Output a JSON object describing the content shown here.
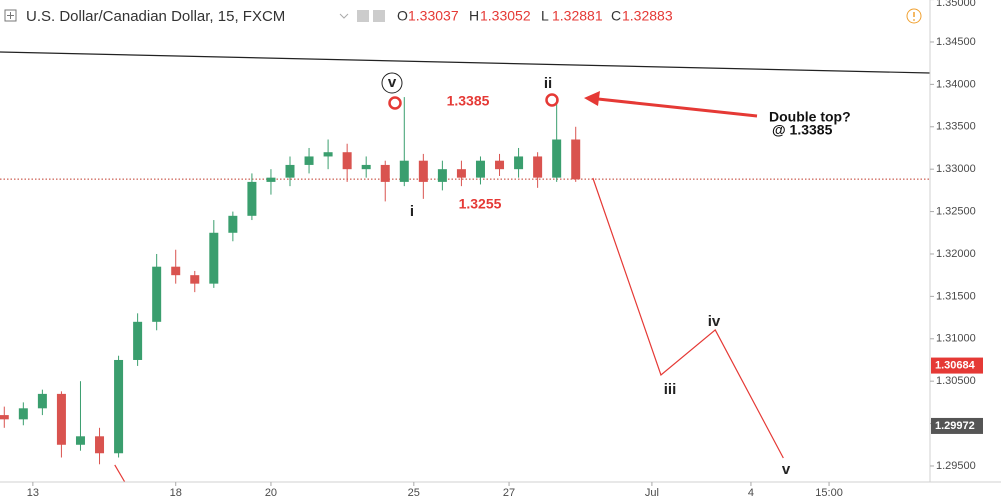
{
  "chart_data": {
    "type": "candlestick",
    "title": "U.S. Dollar/Canadian Dollar, 15, FXCM",
    "ohlc_legend": [
      {
        "label": "O",
        "value": 1.33037
      },
      {
        "label": "H",
        "value": 1.33052
      },
      {
        "label": "L",
        "value": 1.32881
      },
      {
        "label": "C",
        "value": 1.32883
      }
    ],
    "up_color": "#3a9e6e",
    "down_color": "#d9534f",
    "xlim": [
      -0.69,
      18.84
    ],
    "xticks": [
      {
        "value": 0,
        "label": "13"
      },
      {
        "value": 3,
        "label": "18"
      },
      {
        "value": 5,
        "label": "20"
      },
      {
        "value": 8,
        "label": "25"
      },
      {
        "value": 10,
        "label": "27"
      },
      {
        "value": 13,
        "label": "Jul"
      },
      {
        "value": 15.08,
        "label": "4"
      },
      {
        "value": 16.72,
        "label": "15:00"
      }
    ],
    "ylim": [
      1.29311,
      1.34995
    ],
    "yticks": [
      {
        "value": 1.35,
        "label": "1.35000"
      },
      {
        "value": 1.345,
        "label": "1.34500"
      },
      {
        "value": 1.34,
        "label": "1.34000"
      },
      {
        "value": 1.335,
        "label": "1.33500"
      },
      {
        "value": 1.33,
        "label": "1.33000"
      },
      {
        "value": 1.325,
        "label": "1.32500"
      },
      {
        "value": 1.32,
        "label": "1.32000"
      },
      {
        "value": 1.315,
        "label": "1.31500"
      },
      {
        "value": 1.31,
        "label": "1.31000"
      },
      {
        "value": 1.305,
        "label": "1.30500"
      },
      {
        "value": 1.3,
        "label": "1.30000"
      },
      {
        "value": 1.295,
        "label": "1.29500"
      }
    ],
    "candles": {
      "x": [
        -0.6,
        -0.2,
        0.2,
        0.6,
        1.0,
        1.4,
        1.8,
        2.2,
        2.6,
        3.0,
        3.4,
        3.8,
        4.2,
        4.6,
        5.0,
        5.4,
        5.8,
        6.2,
        6.6,
        7.0,
        7.4,
        7.8,
        8.2,
        8.6,
        9.0,
        9.4,
        9.8,
        10.2,
        10.6,
        11.0,
        11.4
      ],
      "open": [
        1.301,
        1.3005,
        1.3018,
        1.3035,
        1.2975,
        1.2985,
        1.2965,
        1.3075,
        1.312,
        1.3185,
        1.3175,
        1.3165,
        1.3225,
        1.3245,
        1.3285,
        1.329,
        1.3305,
        1.3315,
        1.332,
        1.33,
        1.3305,
        1.3285,
        1.331,
        1.3285,
        1.33,
        1.329,
        1.331,
        1.33,
        1.3315,
        1.329,
        1.3335
      ],
      "high": [
        1.302,
        1.3025,
        1.304,
        1.3038,
        1.305,
        1.2995,
        1.308,
        1.313,
        1.32,
        1.3205,
        1.318,
        1.324,
        1.325,
        1.3295,
        1.33,
        1.3315,
        1.3325,
        1.3335,
        1.333,
        1.3315,
        1.331,
        1.3385,
        1.3318,
        1.331,
        1.331,
        1.3315,
        1.3318,
        1.3325,
        1.332,
        1.3385,
        1.335
      ],
      "low": [
        1.2995,
        1.2998,
        1.301,
        1.296,
        1.2968,
        1.2952,
        1.296,
        1.3068,
        1.311,
        1.3165,
        1.3155,
        1.316,
        1.3215,
        1.324,
        1.327,
        1.328,
        1.3295,
        1.33,
        1.3285,
        1.329,
        1.3262,
        1.328,
        1.3265,
        1.3275,
        1.328,
        1.3282,
        1.3292,
        1.329,
        1.3278,
        1.3285,
        1.3285
      ],
      "close": [
        1.3005,
        1.3018,
        1.3035,
        1.2975,
        1.2985,
        1.2965,
        1.3075,
        1.312,
        1.3185,
        1.3175,
        1.3165,
        1.3225,
        1.3245,
        1.3285,
        1.329,
        1.3305,
        1.3315,
        1.332,
        1.33,
        1.3305,
        1.3285,
        1.331,
        1.3285,
        1.33,
        1.329,
        1.331,
        1.33,
        1.3315,
        1.329,
        1.3335,
        1.3288
      ]
    },
    "lines": [
      {
        "color": "#222222",
        "x": [
          -0.69,
          18.84
        ],
        "values": [
          1.34382,
          1.34134
        ]
      },
      {
        "color": "#e53935",
        "x": [
          11.76,
          13.19,
          14.33,
          15.76
        ],
        "values": [
          1.32896,
          1.30573,
          1.31104,
          1.29594
        ]
      },
      {
        "color": "#e53935",
        "x": [
          1.72,
          1.93
        ],
        "values": [
          1.29512,
          1.29311
        ]
      }
    ],
    "price_tags": [
      {
        "value": 1.30684,
        "color": "#e53935"
      },
      {
        "value": 1.29972,
        "color": "#555555"
      }
    ],
    "annotations": {
      "wave_v_top": "v",
      "wave_i": "i",
      "wave_ii": "ii",
      "wave_iii": "iii",
      "wave_iv": "iv",
      "wave_v": "v",
      "high_label": "1.3385",
      "low_label": "1.3255",
      "note_line1": "Double top?",
      "note_line2": "@ 1.3385"
    }
  }
}
